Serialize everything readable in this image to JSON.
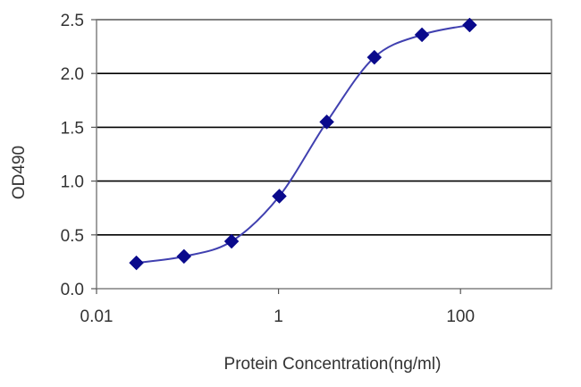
{
  "chart_data": {
    "type": "scatter",
    "title": "",
    "xlabel": "Protein Concentration(ng/ml)",
    "ylabel": "OD490",
    "x_scale": "log",
    "xlim": [
      0.01,
      1000
    ],
    "ylim": [
      0,
      2.5
    ],
    "x_ticks": [
      {
        "value": 0.01,
        "label": "0.01"
      },
      {
        "value": 1,
        "label": "1"
      },
      {
        "value": 100,
        "label": "100"
      }
    ],
    "y_ticks": [
      {
        "value": 0.0,
        "label": "0.0"
      },
      {
        "value": 0.5,
        "label": "0.5"
      },
      {
        "value": 1.0,
        "label": "1.0"
      },
      {
        "value": 1.5,
        "label": "1.5"
      },
      {
        "value": 2.0,
        "label": "2.0"
      },
      {
        "value": 2.5,
        "label": "2.5"
      }
    ],
    "grid": "horizontal",
    "marker": "diamond",
    "line": "smooth fitted curve",
    "colors": {
      "marker": "#0a0a8c",
      "line": "#4040b0",
      "grid": "#000000",
      "frame": "#808080"
    },
    "series": [
      {
        "x": [
          0.0274,
          0.0914,
          0.305,
          1.02,
          3.39,
          11.3,
          37.7,
          126
        ],
        "y": [
          0.24,
          0.3,
          0.44,
          0.86,
          1.55,
          2.15,
          2.36,
          2.45
        ]
      }
    ]
  }
}
